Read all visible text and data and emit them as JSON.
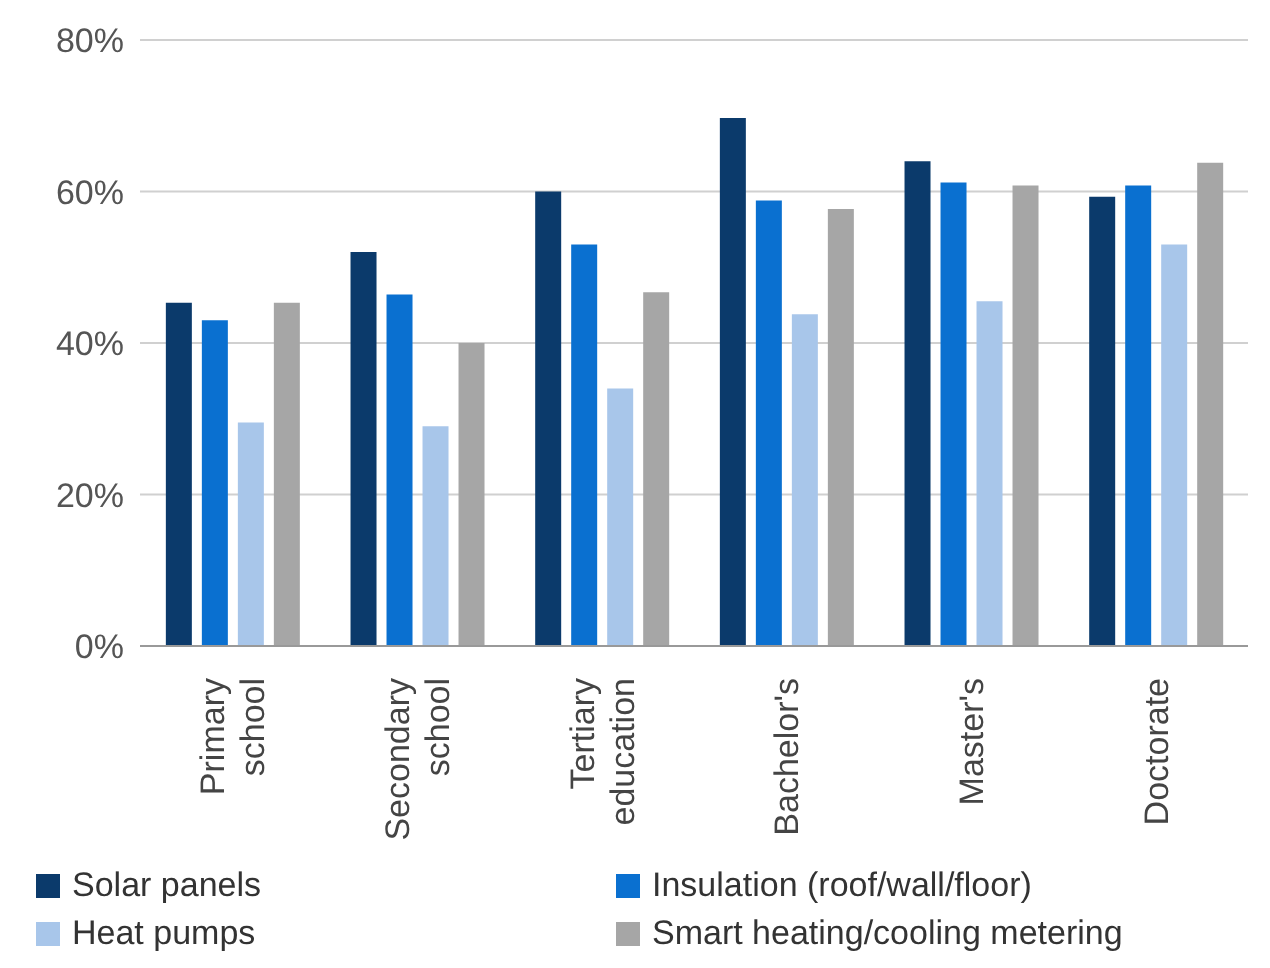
{
  "chart_data": {
    "type": "bar",
    "categories": [
      "Primary school",
      "Secondary school",
      "Tertiary education",
      "Bachelor's",
      "Master's",
      "Doctorate"
    ],
    "series": [
      {
        "name": "Solar panels",
        "color": "#0b3a6b",
        "values": [
          45.3,
          52,
          60,
          69.7,
          64,
          59.3
        ]
      },
      {
        "name": "Insulation (roof/wall/floor)",
        "color": "#0a70d0",
        "values": [
          43,
          46.4,
          53,
          58.8,
          61.2,
          60.8
        ]
      },
      {
        "name": "Heat pumps",
        "color": "#a8c6ea",
        "values": [
          29.5,
          29,
          34,
          43.8,
          45.5,
          53
        ]
      },
      {
        "name": "Smart heating/cooling metering",
        "color": "#a6a6a6",
        "values": [
          45.3,
          40,
          46.7,
          57.7,
          60.8,
          63.8
        ]
      }
    ],
    "ylim": [
      0,
      80
    ],
    "yticks": [
      {
        "value": 0,
        "label": "0%"
      },
      {
        "value": 20,
        "label": "20%"
      },
      {
        "value": 40,
        "label": "40%"
      },
      {
        "value": 60,
        "label": "60%"
      },
      {
        "value": 80,
        "label": "80%"
      }
    ],
    "grid": "y",
    "legend": "bottom"
  }
}
